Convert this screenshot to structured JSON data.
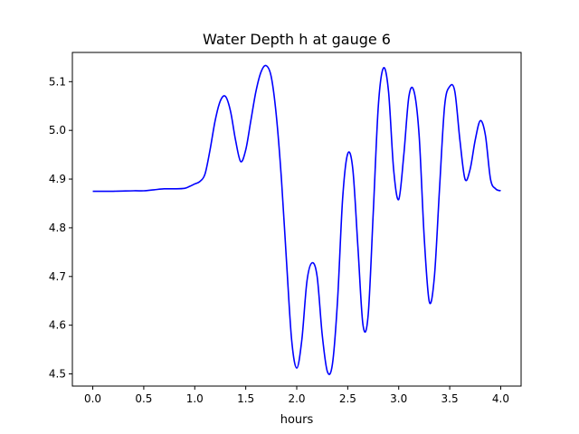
{
  "chart_data": {
    "type": "line",
    "title": "Water Depth h at gauge 6",
    "xlabel": "hours",
    "ylabel": "",
    "xlim": [
      -0.2,
      4.2
    ],
    "ylim": [
      4.475,
      5.16
    ],
    "xticks": [
      0.0,
      0.5,
      1.0,
      1.5,
      2.0,
      2.5,
      3.0,
      3.5,
      4.0
    ],
    "xtick_labels": [
      "0.0",
      "0.5",
      "1.0",
      "1.5",
      "2.0",
      "2.5",
      "3.0",
      "3.5",
      "4.0"
    ],
    "yticks": [
      4.5,
      4.6,
      4.7,
      4.8,
      4.9,
      5.0,
      5.1
    ],
    "ytick_labels": [
      "4.5",
      "4.6",
      "4.7",
      "4.8",
      "4.9",
      "5.0",
      "5.1"
    ],
    "grid": false,
    "series": [
      {
        "color": "#0000ff",
        "x": [
          0.0,
          0.2,
          0.4,
          0.5,
          0.6,
          0.7,
          0.8,
          0.9,
          0.95,
          1.0,
          1.05,
          1.1,
          1.15,
          1.2,
          1.25,
          1.3,
          1.35,
          1.4,
          1.45,
          1.5,
          1.55,
          1.6,
          1.65,
          1.7,
          1.75,
          1.8,
          1.85,
          1.9,
          1.95,
          2.0,
          2.05,
          2.1,
          2.15,
          2.2,
          2.25,
          2.3,
          2.35,
          2.4,
          2.45,
          2.5,
          2.55,
          2.6,
          2.65,
          2.7,
          2.75,
          2.8,
          2.85,
          2.9,
          2.95,
          3.0,
          3.05,
          3.1,
          3.15,
          3.2,
          3.25,
          3.3,
          3.35,
          3.4,
          3.45,
          3.5,
          3.55,
          3.6,
          3.65,
          3.7,
          3.75,
          3.8,
          3.85,
          3.9,
          3.95,
          4.0
        ],
        "values": [
          4.875,
          4.875,
          4.876,
          4.876,
          4.878,
          4.88,
          4.88,
          4.881,
          4.885,
          4.89,
          4.895,
          4.91,
          4.96,
          5.02,
          5.06,
          5.07,
          5.04,
          4.98,
          4.936,
          4.96,
          5.02,
          5.08,
          5.12,
          5.133,
          5.11,
          5.03,
          4.9,
          4.73,
          4.57,
          4.512,
          4.57,
          4.69,
          4.728,
          4.7,
          4.58,
          4.505,
          4.52,
          4.65,
          4.86,
          4.952,
          4.92,
          4.76,
          4.6,
          4.62,
          4.83,
          5.05,
          5.128,
          5.08,
          4.92,
          4.858,
          4.95,
          5.07,
          5.08,
          4.99,
          4.78,
          4.648,
          4.7,
          4.88,
          5.05,
          5.09,
          5.08,
          4.98,
          4.9,
          4.92,
          4.98,
          5.02,
          4.99,
          4.9,
          4.88,
          4.876
        ]
      }
    ]
  }
}
